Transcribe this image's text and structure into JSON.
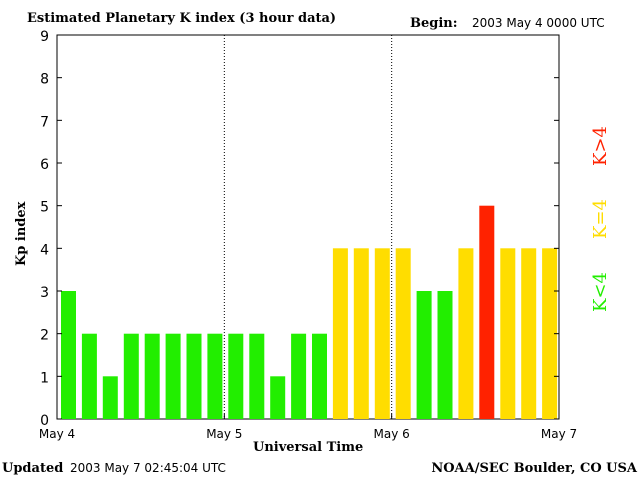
{
  "header": {
    "title": "Estimated Planetary K index (3 hour data)",
    "begin_label": "Begin:",
    "begin_value": "2003 May 4 0000 UTC"
  },
  "footer": {
    "updated_label": "Updated",
    "updated_value": "2003 May  7 02:45:04 UTC",
    "source": "NOAA/SEC Boulder, CO USA"
  },
  "legend": [
    {
      "label": "K<4",
      "color": "#22ee00"
    },
    {
      "label": "K=4",
      "color": "#ffdd00"
    },
    {
      "label": "K>4",
      "color": "#ff2200"
    }
  ],
  "colors": {
    "low": "#22ee00",
    "mid": "#ffdd00",
    "high": "#ff2200"
  },
  "chart_data": {
    "type": "bar",
    "xlabel": "Universal Time",
    "ylabel": "Kp index",
    "ylim": [
      0,
      9
    ],
    "yticks": [
      "0",
      "1",
      "2",
      "3",
      "4",
      "5",
      "6",
      "7",
      "8",
      "9"
    ],
    "xticks": [
      "May 4",
      "May 5",
      "May 6",
      "May 7"
    ],
    "categories": [
      "May 4 00",
      "May 4 03",
      "May 4 06",
      "May 4 09",
      "May 4 12",
      "May 4 15",
      "May 4 18",
      "May 4 21",
      "May 5 00",
      "May 5 03",
      "May 5 06",
      "May 5 09",
      "May 5 12",
      "May 5 15",
      "May 5 18",
      "May 5 21",
      "May 6 00",
      "May 6 03",
      "May 6 06",
      "May 6 09",
      "May 6 12",
      "May 6 15",
      "May 6 18",
      "May 6 21"
    ],
    "values": [
      3,
      2,
      1,
      2,
      2,
      2,
      2,
      2,
      2,
      2,
      1,
      2,
      2,
      4,
      4,
      4,
      4,
      3,
      3,
      4,
      5,
      4,
      4,
      4
    ],
    "grid": false,
    "day_separators": true
  }
}
